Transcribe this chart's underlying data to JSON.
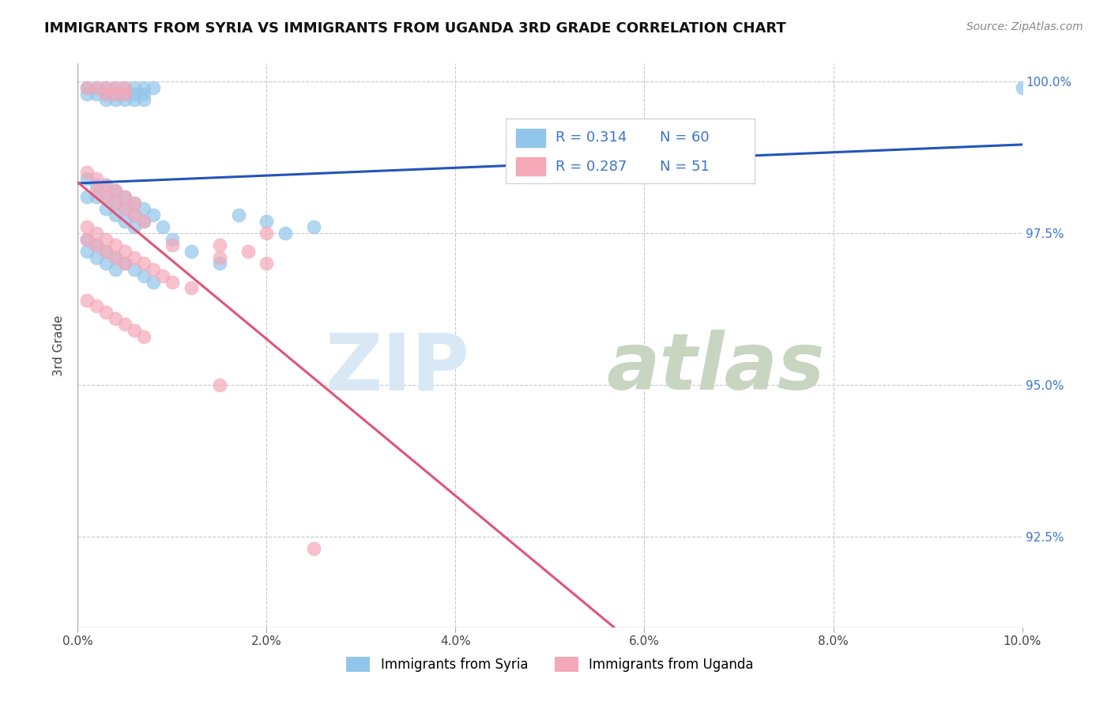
{
  "title": "IMMIGRANTS FROM SYRIA VS IMMIGRANTS FROM UGANDA 3RD GRADE CORRELATION CHART",
  "source": "Source: ZipAtlas.com",
  "xlabel": "",
  "ylabel": "3rd Grade",
  "xlim": [
    0.0,
    0.1
  ],
  "ylim": [
    0.91,
    1.003
  ],
  "xtick_labels": [
    "0.0%",
    "2.0%",
    "4.0%",
    "6.0%",
    "8.0%",
    "10.0%"
  ],
  "xtick_vals": [
    0.0,
    0.02,
    0.04,
    0.06,
    0.08,
    0.1
  ],
  "ytick_labels": [
    "92.5%",
    "95.0%",
    "97.5%",
    "100.0%"
  ],
  "ytick_vals": [
    0.925,
    0.95,
    0.975,
    1.0
  ],
  "legend_syria_R": "0.314",
  "legend_syria_N": "60",
  "legend_uganda_R": "0.287",
  "legend_uganda_N": "51",
  "color_syria": "#92C5EA",
  "color_uganda": "#F4A8B8",
  "line_color_syria": "#2255BB",
  "line_color_uganda": "#E05575",
  "syria_points": [
    [
      0.001,
      0.999
    ],
    [
      0.001,
      0.998
    ],
    [
      0.002,
      0.999
    ],
    [
      0.002,
      0.998
    ],
    [
      0.003,
      0.999
    ],
    [
      0.003,
      0.998
    ],
    [
      0.003,
      0.997
    ],
    [
      0.004,
      0.999
    ],
    [
      0.004,
      0.998
    ],
    [
      0.004,
      0.997
    ],
    [
      0.005,
      0.999
    ],
    [
      0.005,
      0.998
    ],
    [
      0.005,
      0.997
    ],
    [
      0.006,
      0.999
    ],
    [
      0.006,
      0.998
    ],
    [
      0.006,
      0.997
    ],
    [
      0.007,
      0.999
    ],
    [
      0.007,
      0.998
    ],
    [
      0.007,
      0.997
    ],
    [
      0.008,
      0.999
    ],
    [
      0.001,
      0.984
    ],
    [
      0.001,
      0.981
    ],
    [
      0.002,
      0.983
    ],
    [
      0.002,
      0.981
    ],
    [
      0.003,
      0.983
    ],
    [
      0.003,
      0.981
    ],
    [
      0.003,
      0.979
    ],
    [
      0.004,
      0.982
    ],
    [
      0.004,
      0.98
    ],
    [
      0.004,
      0.978
    ],
    [
      0.005,
      0.981
    ],
    [
      0.005,
      0.979
    ],
    [
      0.005,
      0.977
    ],
    [
      0.006,
      0.98
    ],
    [
      0.006,
      0.978
    ],
    [
      0.006,
      0.976
    ],
    [
      0.007,
      0.979
    ],
    [
      0.007,
      0.977
    ],
    [
      0.008,
      0.978
    ],
    [
      0.009,
      0.976
    ],
    [
      0.001,
      0.974
    ],
    [
      0.001,
      0.972
    ],
    [
      0.002,
      0.973
    ],
    [
      0.002,
      0.971
    ],
    [
      0.003,
      0.972
    ],
    [
      0.003,
      0.97
    ],
    [
      0.004,
      0.971
    ],
    [
      0.004,
      0.969
    ],
    [
      0.005,
      0.97
    ],
    [
      0.006,
      0.969
    ],
    [
      0.007,
      0.968
    ],
    [
      0.008,
      0.967
    ],
    [
      0.01,
      0.974
    ],
    [
      0.012,
      0.972
    ],
    [
      0.015,
      0.97
    ],
    [
      0.017,
      0.978
    ],
    [
      0.02,
      0.977
    ],
    [
      0.022,
      0.975
    ],
    [
      0.025,
      0.976
    ],
    [
      0.1,
      0.999
    ]
  ],
  "uganda_points": [
    [
      0.001,
      0.999
    ],
    [
      0.002,
      0.999
    ],
    [
      0.003,
      0.999
    ],
    [
      0.003,
      0.998
    ],
    [
      0.004,
      0.999
    ],
    [
      0.004,
      0.998
    ],
    [
      0.005,
      0.999
    ],
    [
      0.005,
      0.998
    ],
    [
      0.001,
      0.985
    ],
    [
      0.002,
      0.984
    ],
    [
      0.002,
      0.982
    ],
    [
      0.003,
      0.983
    ],
    [
      0.003,
      0.981
    ],
    [
      0.004,
      0.982
    ],
    [
      0.004,
      0.98
    ],
    [
      0.005,
      0.981
    ],
    [
      0.005,
      0.979
    ],
    [
      0.006,
      0.98
    ],
    [
      0.006,
      0.978
    ],
    [
      0.007,
      0.977
    ],
    [
      0.001,
      0.976
    ],
    [
      0.001,
      0.974
    ],
    [
      0.002,
      0.975
    ],
    [
      0.002,
      0.973
    ],
    [
      0.003,
      0.974
    ],
    [
      0.003,
      0.972
    ],
    [
      0.004,
      0.973
    ],
    [
      0.004,
      0.971
    ],
    [
      0.005,
      0.972
    ],
    [
      0.005,
      0.97
    ],
    [
      0.006,
      0.971
    ],
    [
      0.007,
      0.97
    ],
    [
      0.008,
      0.969
    ],
    [
      0.009,
      0.968
    ],
    [
      0.01,
      0.967
    ],
    [
      0.012,
      0.966
    ],
    [
      0.015,
      0.973
    ],
    [
      0.015,
      0.971
    ],
    [
      0.018,
      0.972
    ],
    [
      0.02,
      0.975
    ],
    [
      0.001,
      0.964
    ],
    [
      0.002,
      0.963
    ],
    [
      0.003,
      0.962
    ],
    [
      0.004,
      0.961
    ],
    [
      0.005,
      0.96
    ],
    [
      0.006,
      0.959
    ],
    [
      0.007,
      0.958
    ],
    [
      0.01,
      0.973
    ],
    [
      0.015,
      0.95
    ],
    [
      0.02,
      0.97
    ],
    [
      0.025,
      0.923
    ]
  ],
  "watermark_ZIP": "ZIP",
  "watermark_atlas": "atlas",
  "background_color": "#ffffff",
  "grid_color": "#c8c8c8"
}
